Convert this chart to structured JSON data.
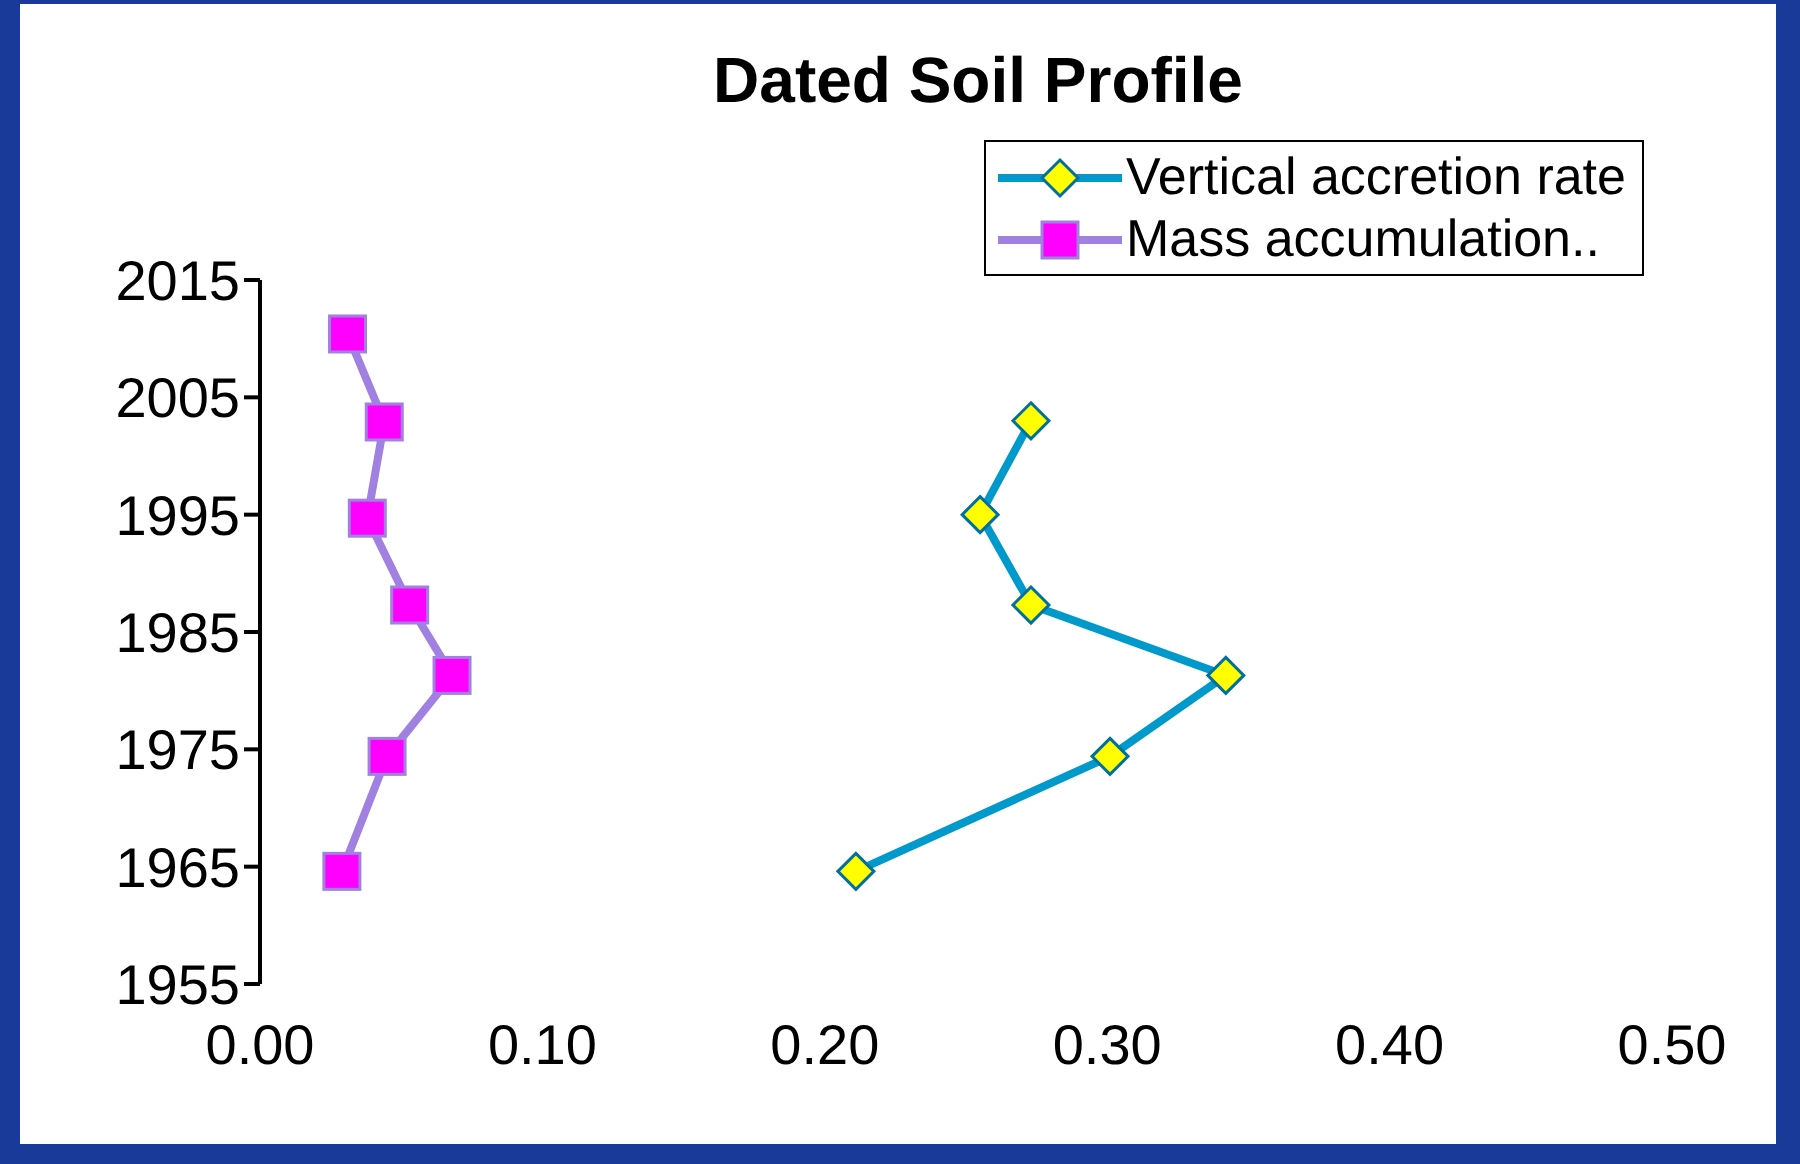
{
  "chart_data": {
    "type": "line",
    "title": "Dated Soil Profile",
    "series": [
      {
        "name": "Vertical accretion rate",
        "color": "#0099cc",
        "colors": [
          "#ffff00",
          "#ffff00",
          "#ffff00",
          "#ffff00",
          "#ffff00",
          "#ffff00"
        ],
        "marker": "diamond",
        "x": [
          0.273,
          0.255,
          0.273,
          0.342,
          0.301,
          0.211
        ],
        "values": [
          2003,
          1995,
          1987.3,
          1981.3,
          1974.4,
          1964.6
        ]
      },
      {
        "name": "Mass accumulation..",
        "color": "#a080e0",
        "colors": [
          "#ff00ff",
          "#ff00ff",
          "#ff00ff",
          "#ff00ff",
          "#ff00ff",
          "#ff00ff",
          "#ff00ff"
        ],
        "marker": "square",
        "x": [
          0.031,
          0.044,
          0.038,
          0.053,
          0.068,
          0.045,
          0.029
        ],
        "values": [
          2010.4,
          2002.9,
          1994.7,
          1987.3,
          1981.3,
          1974.4,
          1964.6
        ]
      }
    ],
    "xlim": [
      0,
      0.5
    ],
    "xticks": [
      {
        "value": 0,
        "label": "0.00"
      },
      {
        "value": 0.1,
        "label": "0.10"
      },
      {
        "value": 0.2,
        "label": "0.20"
      },
      {
        "value": 0.3,
        "label": "0.30"
      },
      {
        "value": 0.4,
        "label": "0.40"
      },
      {
        "value": 0.5,
        "label": "0.50"
      }
    ],
    "ylim": [
      1955,
      2015
    ],
    "yticks": [
      1955,
      1965,
      1975,
      1985,
      1995,
      2005,
      2015
    ],
    "grid": false,
    "legend": "top right"
  }
}
